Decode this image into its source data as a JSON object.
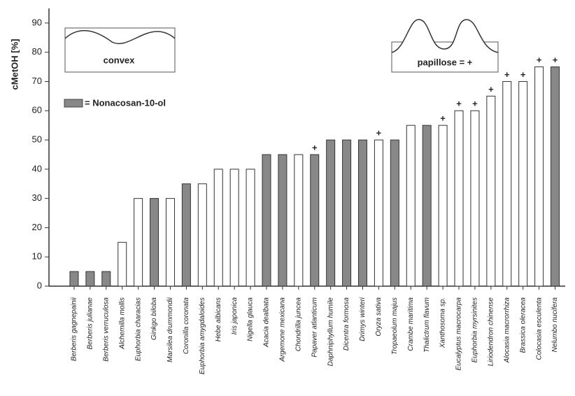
{
  "chart_data": {
    "type": "bar",
    "y_label": "cMetOH [%]",
    "legend_label": "= Nonacosan-10-ol",
    "inset_labels": [
      "convex",
      "papillose = +"
    ],
    "categories": [
      "Berberis gagnepainii",
      "Berberis julianae",
      "Berberis verruculosa",
      "Alchemilla mollis",
      "Euphorbia characias",
      "Ginkgo biloba",
      "Marsilea drummondii",
      "Coronilla coronata",
      "Euphorbia amygdaloides",
      "Hebe albicans",
      "Iris japonica",
      "Nigella glauca",
      "Acacia dealbata",
      "Argemone mexicana",
      "Chondrilla juncea",
      "Papaver atlanticum",
      "Daphniphyllum humile",
      "Dicentra formosa",
      "Drimys winteri",
      "Oryza sativa",
      "Tropaeolum majus",
      "Crambe maritima",
      "Thalictrum flavum",
      "Xanthosoma sp.",
      "Eucalyptus macrocarpa",
      "Euphorbia myrsinites",
      "Liriodendron chinense",
      "Alocasia macrorrhiza",
      "Brassica oleracea",
      "Colocasia esculenta",
      "Nelumbo nucifera"
    ],
    "values": [
      5,
      5,
      5,
      15,
      30,
      30,
      30,
      35,
      35,
      40,
      40,
      40,
      45,
      45,
      45,
      45,
      50,
      50,
      50,
      50,
      50,
      55,
      55,
      55,
      60,
      60,
      65,
      70,
      70,
      75,
      75
    ],
    "markers": [
      null,
      null,
      null,
      null,
      null,
      null,
      null,
      null,
      null,
      null,
      null,
      null,
      null,
      null,
      null,
      "+",
      null,
      null,
      null,
      "+",
      null,
      null,
      null,
      "+",
      "+",
      "+",
      "+",
      "+",
      "+",
      "+",
      "+"
    ],
    "colors": [
      "#888",
      "#888",
      "#888",
      "#fff",
      "#fff",
      "#888",
      "#fff",
      "#888",
      "#fff",
      "#fff",
      "#fff",
      "#fff",
      "#888",
      "#888",
      "#fff",
      "#888",
      "#888",
      "#888",
      "#888",
      "#fff",
      "#888",
      "#fff",
      "#888",
      "#fff",
      "#fff",
      "#fff",
      "#fff",
      "#fff",
      "#fff",
      "#fff",
      "#888"
    ],
    "legend_color": "#888",
    "ylim": [
      0,
      95
    ],
    "yticks": [
      0,
      10,
      20,
      30,
      40,
      50,
      60,
      70,
      80,
      90
    ]
  }
}
